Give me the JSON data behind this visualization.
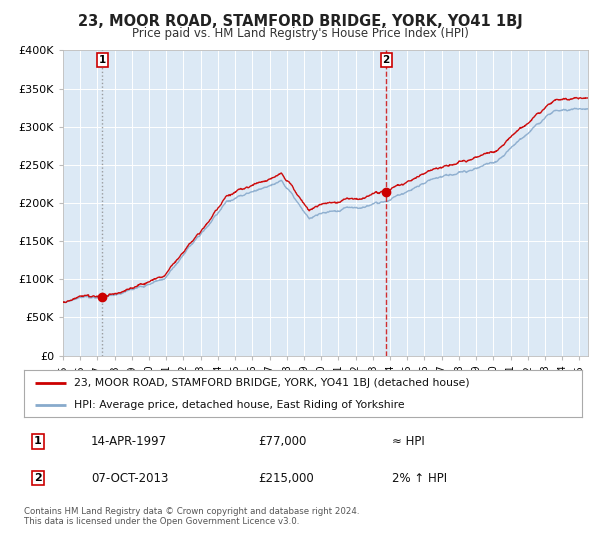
{
  "title": "23, MOOR ROAD, STAMFORD BRIDGE, YORK, YO41 1BJ",
  "subtitle": "Price paid vs. HM Land Registry's House Price Index (HPI)",
  "fig_bg_color": "#ffffff",
  "plot_bg_color": "#dce9f5",
  "grid_color": "#ffffff",
  "sale1_date": 1997.28,
  "sale1_price": 77000,
  "sale1_label": "1",
  "sale2_date": 2013.77,
  "sale2_price": 215000,
  "sale2_label": "2",
  "legend_line1": "23, MOOR ROAD, STAMFORD BRIDGE, YORK, YO41 1BJ (detached house)",
  "legend_line2": "HPI: Average price, detached house, East Riding of Yorkshire",
  "table_row1": [
    "1",
    "14-APR-1997",
    "£77,000",
    "≈ HPI"
  ],
  "table_row2": [
    "2",
    "07-OCT-2013",
    "£215,000",
    "2% ↑ HPI"
  ],
  "footer": "Contains HM Land Registry data © Crown copyright and database right 2024.\nThis data is licensed under the Open Government Licence v3.0.",
  "red_line_color": "#cc0000",
  "blue_line_color": "#88aacc",
  "marker_color": "#cc0000",
  "vline1_color": "#888888",
  "vline2_color": "#cc0000",
  "ymin": 0,
  "ymax": 400000,
  "xmin": 1995.0,
  "xmax": 2025.5,
  "yticks": [
    0,
    50000,
    100000,
    150000,
    200000,
    250000,
    300000,
    350000,
    400000
  ],
  "ytick_labels": [
    "£0",
    "£50K",
    "£100K",
    "£150K",
    "£200K",
    "£250K",
    "£300K",
    "£350K",
    "£400K"
  ]
}
